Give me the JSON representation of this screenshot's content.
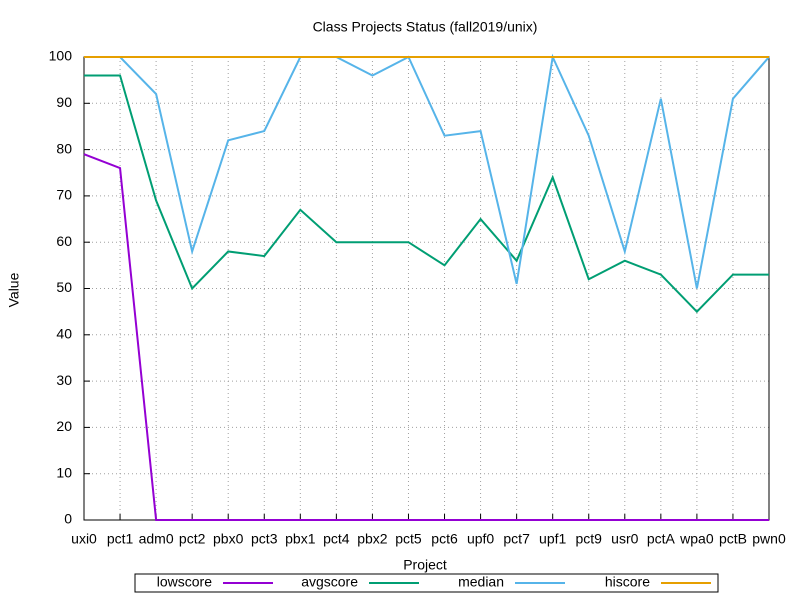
{
  "chart_data": {
    "type": "line",
    "title": "Class Projects Status (fall2019/unix)",
    "x_label": "Project",
    "y_label": "Value",
    "categories": [
      "uxi0",
      "pct1",
      "adm0",
      "pct2",
      "pbx0",
      "pct3",
      "pbx1",
      "pct4",
      "pbx2",
      "pct5",
      "pct6",
      "upf0",
      "pct7",
      "upf1",
      "pct9",
      "usr0",
      "pctA",
      "wpa0",
      "pctB",
      "pwn0"
    ],
    "series": [
      {
        "name": "lowscore",
        "color": "#9400d3",
        "values": [
          79,
          76,
          0,
          0,
          0,
          0,
          0,
          0,
          0,
          0,
          0,
          0,
          0,
          0,
          0,
          0,
          0,
          0,
          0,
          0
        ]
      },
      {
        "name": "avgscore",
        "color": "#009e73",
        "values": [
          96,
          96,
          69,
          50,
          58,
          57,
          67,
          60,
          60,
          60,
          55,
          65,
          56,
          74,
          52,
          56,
          53,
          45,
          53,
          53
        ]
      },
      {
        "name": "median",
        "color": "#56b4e9",
        "values": [
          100,
          100,
          92,
          58,
          82,
          84,
          100,
          100,
          96,
          100,
          83,
          84,
          51,
          100,
          83,
          58,
          91,
          50,
          91,
          100
        ]
      },
      {
        "name": "hiscore",
        "color": "#e69f00",
        "values": [
          100,
          100,
          100,
          100,
          100,
          100,
          100,
          100,
          100,
          100,
          100,
          100,
          100,
          100,
          100,
          100,
          100,
          100,
          100,
          100
        ]
      }
    ],
    "ylim": [
      0,
      100
    ],
    "yticks": [
      0,
      10,
      20,
      30,
      40,
      50,
      60,
      70,
      80,
      90,
      100
    ],
    "grid": true,
    "legend": "bottom"
  }
}
